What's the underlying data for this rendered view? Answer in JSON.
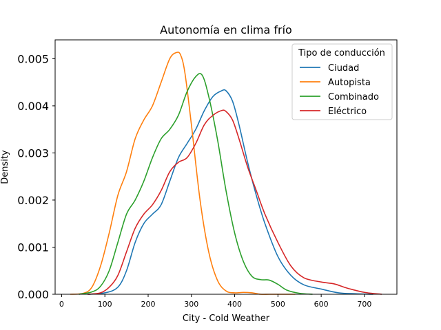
{
  "chart_data": {
    "type": "line",
    "title": "Autonomía en clima frío",
    "xlabel": "City - Cold Weather",
    "ylabel": "Density",
    "xlim": [
      -15,
      775
    ],
    "ylim": [
      0,
      0.0054
    ],
    "xticks": [
      0,
      100,
      200,
      300,
      400,
      500,
      600,
      700
    ],
    "xtick_labels": [
      "0",
      "100",
      "200",
      "300",
      "400",
      "500",
      "600",
      "700"
    ],
    "yticks": [
      0,
      0.001,
      0.002,
      0.003,
      0.004,
      0.005
    ],
    "ytick_labels": [
      "0.000",
      "0.001",
      "0.002",
      "0.003",
      "0.004",
      "0.005"
    ],
    "grid": false,
    "legend": {
      "title": "Tipo de conducción",
      "placement": "upper right"
    },
    "series": [
      {
        "name": "Ciudad",
        "color": "#1f77b4",
        "x": [
          60,
          100,
          130,
          150,
          170,
          190,
          210,
          230,
          250,
          270,
          290,
          310,
          330,
          350,
          370,
          380,
          395,
          410,
          430,
          450,
          470,
          500,
          530,
          560,
          600,
          640,
          680,
          720
        ],
        "y": [
          0.0,
          3e-05,
          0.00015,
          0.0005,
          0.0011,
          0.0015,
          0.0017,
          0.0019,
          0.0024,
          0.0029,
          0.0032,
          0.0035,
          0.0039,
          0.0042,
          0.00432,
          0.00432,
          0.0041,
          0.0036,
          0.0028,
          0.0021,
          0.0015,
          0.0008,
          0.0004,
          0.0002,
          0.00011,
          3e-05,
          1e-05,
          0.0
        ]
      },
      {
        "name": "Autopista",
        "color": "#ff7f0e",
        "x": [
          20,
          50,
          70,
          90,
          110,
          130,
          150,
          170,
          190,
          210,
          230,
          250,
          265,
          275,
          285,
          300,
          320,
          340,
          360,
          380,
          400,
          420,
          440,
          460,
          480,
          510,
          540
        ],
        "y": [
          0.0,
          2e-05,
          0.00015,
          0.0006,
          0.0013,
          0.0021,
          0.0026,
          0.0033,
          0.0037,
          0.004,
          0.0045,
          0.005,
          0.00513,
          0.00508,
          0.0047,
          0.0036,
          0.002,
          0.0009,
          0.0003,
          7e-05,
          3e-05,
          4e-05,
          3e-05,
          0.0,
          0.0,
          0.0,
          0.0
        ]
      },
      {
        "name": "Combinado",
        "color": "#2ca02c",
        "x": [
          40,
          70,
          90,
          110,
          130,
          150,
          170,
          190,
          210,
          230,
          250,
          270,
          290,
          310,
          325,
          340,
          360,
          380,
          400,
          420,
          440,
          460,
          480,
          500,
          520,
          550,
          580
        ],
        "y": [
          0.0,
          5e-05,
          0.00017,
          0.0005,
          0.0011,
          0.0017,
          0.002,
          0.0024,
          0.0029,
          0.0033,
          0.0035,
          0.0038,
          0.0043,
          0.00462,
          0.00465,
          0.0042,
          0.0033,
          0.0022,
          0.0013,
          0.0007,
          0.00038,
          0.00031,
          0.0003,
          0.00021,
          9e-05,
          2e-05,
          0.0
        ]
      },
      {
        "name": "Eléctrico",
        "color": "#d62728",
        "x": [
          60,
          90,
          110,
          130,
          150,
          170,
          190,
          210,
          230,
          250,
          270,
          290,
          310,
          330,
          350,
          370,
          380,
          395,
          410,
          430,
          450,
          470,
          500,
          530,
          560,
          600,
          630,
          660,
          700,
          740
        ],
        "y": [
          0.0,
          3e-05,
          0.00015,
          0.0004,
          0.0009,
          0.0014,
          0.0017,
          0.0019,
          0.0022,
          0.0026,
          0.0028,
          0.0029,
          0.0032,
          0.0036,
          0.0038,
          0.0039,
          0.00388,
          0.0037,
          0.0033,
          0.0027,
          0.0022,
          0.0017,
          0.0011,
          0.0006,
          0.00035,
          0.00026,
          0.00022,
          0.00013,
          4e-05,
          0.0
        ]
      }
    ]
  }
}
